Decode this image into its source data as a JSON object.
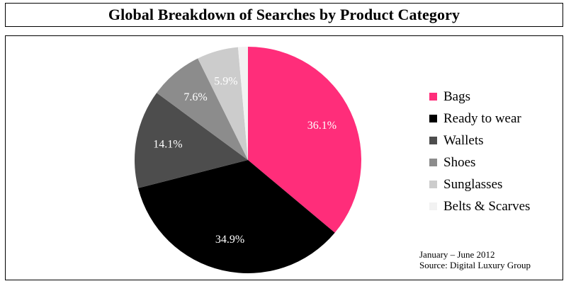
{
  "chart_data": {
    "type": "pie",
    "title": "Global Breakdown of Searches by Product Category",
    "slices": [
      {
        "label": "Bags",
        "value": 36.1,
        "display": "36.1%",
        "color": "#ff2d7a",
        "label_color": "#ffffff"
      },
      {
        "label": "Ready to wear",
        "value": 34.9,
        "display": "34.9%",
        "color": "#000000",
        "label_color": "#ffffff"
      },
      {
        "label": "Wallets",
        "value": 14.1,
        "display": "14.1%",
        "color": "#4d4d4d",
        "label_color": "#ffffff"
      },
      {
        "label": "Shoes",
        "value": 7.6,
        "display": "7.6%",
        "color": "#8c8c8c",
        "label_color": "#ffffff"
      },
      {
        "label": "Sunglasses",
        "value": 5.9,
        "display": "5.9%",
        "color": "#cccccc",
        "label_color": "#ffffff"
      },
      {
        "label": "Belts & Scarves",
        "value": 1.4,
        "display": "",
        "color": "#f2f2f2",
        "label_color": "#ffffff"
      }
    ],
    "start": "top",
    "direction": "clockwise",
    "legend_position": "right"
  },
  "footnote": {
    "period": "January – June 2012",
    "source": "Source: Digital Luxury Group"
  }
}
